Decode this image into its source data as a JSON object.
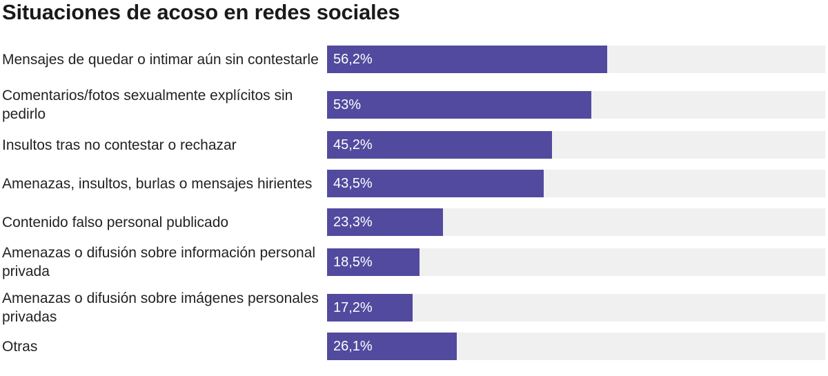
{
  "chart_data": {
    "type": "bar",
    "orientation": "horizontal",
    "title": "Situaciones de acoso en redes sociales",
    "categories": [
      "Mensajes de quedar o intimar aún sin contestarle",
      "Comentarios/fotos sexualmente explícitos sin pedirlo",
      "Insultos tras no contestar o rechazar",
      "Amenazas, insultos, burlas o mensajes hirientes",
      "Contenido falso personal publicado",
      "Amenazas o difusión sobre información personal privada",
      "Amenazas o difusión sobre imágenes personales privadas",
      "Otras"
    ],
    "values": [
      56.2,
      53,
      45.2,
      43.5,
      23.3,
      18.5,
      17.2,
      26.1
    ],
    "value_labels": [
      "56,2%",
      "53%",
      "45,2%",
      "43,5%",
      "23,3%",
      "18,5%",
      "17,2%",
      "26,1%"
    ],
    "xlim": [
      0,
      100
    ],
    "colors": {
      "bar": "#524a9e",
      "track": "#f0f0f0",
      "label_text": "#ffffff"
    },
    "grid": false,
    "legend": "none"
  }
}
